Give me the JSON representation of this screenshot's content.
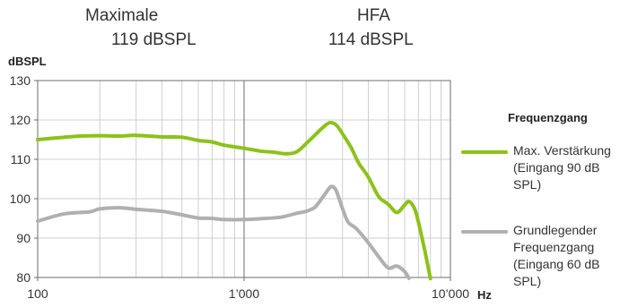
{
  "header": {
    "max_label": "Maximale",
    "max_value": "119 dBSPL",
    "hfa_label": "HFA",
    "hfa_value": "114 dBSPL"
  },
  "colors": {
    "green": "#8cc21a",
    "gray": "#b0b0b0",
    "grid": "#cfcfcf"
  },
  "chart_data": {
    "type": "line",
    "ylabel": "dBSPL",
    "xlabel": "Hz",
    "x_scale": "log",
    "xlim": [
      100,
      10000
    ],
    "ylim": [
      80,
      130
    ],
    "x_ticks": [
      100,
      1000,
      10000
    ],
    "x_tick_labels": [
      "100",
      "1’000",
      "10’000"
    ],
    "y_ticks": [
      80,
      90,
      100,
      110,
      120,
      130
    ],
    "y_tick_labels": [
      "80",
      "90",
      "100",
      "110",
      "120",
      "130"
    ],
    "grid": true,
    "legend_position": "right",
    "legend": {
      "title": "Frequenzgang",
      "items": [
        {
          "lines": [
            "Max. Verstärkung",
            "(Eingang 90 dB",
            "SPL)"
          ],
          "color": "#8cc21a"
        },
        {
          "lines": [
            "Grundlegender",
            "Frequenzgang",
            "(Eingang 60 dB",
            "SPL)"
          ],
          "color": "#b0b0b0"
        }
      ]
    },
    "series": [
      {
        "name": "Max. Verstärkung (Eingang 90 dB SPL)",
        "color": "#8cc21a",
        "x": [
          100,
          150,
          200,
          250,
          300,
          400,
          500,
          600,
          700,
          800,
          1000,
          1200,
          1400,
          1600,
          1800,
          2000,
          2200,
          2400,
          2600,
          2800,
          3000,
          3300,
          3600,
          4000,
          4500,
          5000,
          5500,
          6000,
          6300,
          6700,
          7000,
          7500,
          8000
        ],
        "y": [
          115,
          115.8,
          116,
          115.9,
          116.1,
          115.7,
          115.6,
          114.8,
          114.4,
          113.6,
          112.8,
          112.1,
          111.8,
          111.4,
          111.9,
          114,
          116.1,
          118,
          119.3,
          118.7,
          116.5,
          113,
          109,
          105.5,
          100.5,
          98.6,
          96.5,
          98.4,
          99.3,
          97.5,
          94,
          87,
          79.7
        ]
      },
      {
        "name": "Grundlegender Frequenzgang (Eingang 60 dB SPL)",
        "color": "#b0b0b0",
        "x": [
          100,
          130,
          150,
          180,
          200,
          250,
          300,
          400,
          500,
          600,
          700,
          800,
          1000,
          1200,
          1500,
          1800,
          2000,
          2200,
          2400,
          2600,
          2700,
          2800,
          3000,
          3200,
          3500,
          4000,
          4500,
          5000,
          5500,
          6000,
          6300
        ],
        "y": [
          94.3,
          96,
          96.4,
          96.7,
          97.4,
          97.7,
          97.3,
          96.8,
          95.9,
          95.1,
          95,
          94.7,
          94.7,
          94.9,
          95.3,
          96.3,
          96.8,
          97.8,
          100.3,
          102.8,
          103,
          102,
          97.5,
          94,
          92.4,
          88.8,
          85.2,
          82.4,
          82.9,
          81.5,
          79.8
        ]
      }
    ]
  }
}
